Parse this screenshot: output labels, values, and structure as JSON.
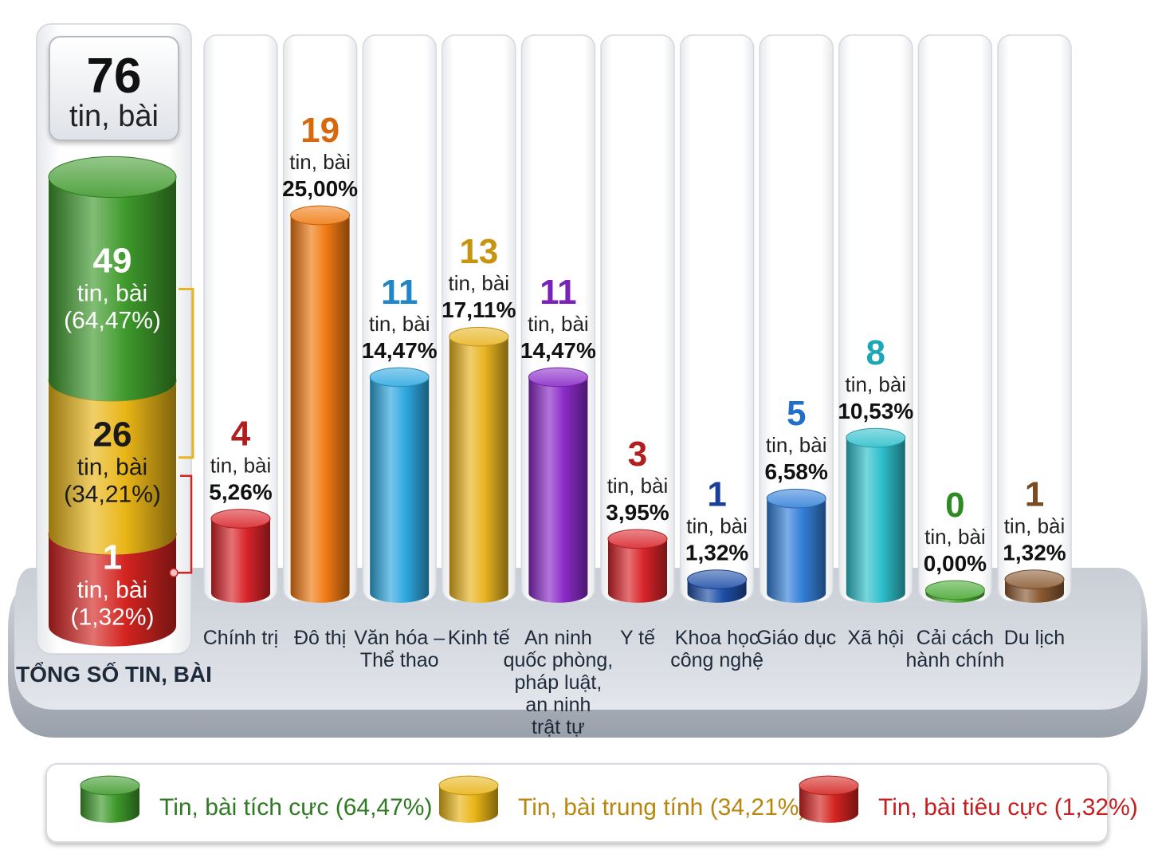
{
  "unit": "tin, bài",
  "colors": {
    "positive": "#3f9a2c",
    "neutral": "#e9b517",
    "negative": "#d42420"
  },
  "chart_data": {
    "type": "bar",
    "title": "",
    "xlabel": "",
    "ylabel": "",
    "ylim": [
      0,
      19
    ],
    "grid": false,
    "legend_position": "bottom",
    "total": {
      "value": 76,
      "caption": "TỔNG SỐ TIN, BÀI",
      "segments": [
        {
          "name": "Tin, bài tích cực",
          "value": 49,
          "percent": "(64,47%)",
          "legend_label": "Tin, bài tích cực (64,47%)",
          "color": "#3f9a2c"
        },
        {
          "name": "Tin, bài trung tính",
          "value": 26,
          "percent": "(34,21%)",
          "legend_label": "Tin, bài trung tính (34,21%)",
          "color": "#e9b517"
        },
        {
          "name": "Tin, bài tiêu cực",
          "value": 1,
          "percent": "(1,32%)",
          "legend_label": "Tin, bài tiêu cực (1,32%)",
          "color": "#d42420"
        }
      ]
    },
    "categories": [
      {
        "label": "Chính trị",
        "value": 4,
        "percent": "5,26%",
        "color": "#d8242a",
        "num_color": "#b01e1e"
      },
      {
        "label": "Đô thị",
        "value": 19,
        "percent": "25,00%",
        "color": "#f07a12",
        "num_color": "#d8680c"
      },
      {
        "label": "Văn hóa –\nThể thao",
        "value": 11,
        "percent": "14,47%",
        "color": "#2ea8e0",
        "num_color": "#1f86c8"
      },
      {
        "label": "Kinh tế",
        "value": 13,
        "percent": "17,11%",
        "color": "#e8b420",
        "num_color": "#c8940e"
      },
      {
        "label": "An ninh\nquốc phòng,\npháp luật,\nan ninh\ntrật tự",
        "value": 11,
        "percent": "14,47%",
        "color": "#8a2bc8",
        "num_color": "#7a22b8"
      },
      {
        "label": "Y tế",
        "value": 3,
        "percent": "3,95%",
        "color": "#d8242a",
        "num_color": "#b01e1e"
      },
      {
        "label": "Khoa học\ncông nghệ",
        "value": 1,
        "percent": "1,32%",
        "color": "#1f4fa8",
        "num_color": "#1a3f98"
      },
      {
        "label": "Giáo dục",
        "value": 5,
        "percent": "6,58%",
        "color": "#3480d8",
        "num_color": "#2070c8"
      },
      {
        "label": "Xã hội",
        "value": 8,
        "percent": "10,53%",
        "color": "#2ec0cc",
        "num_color": "#1aa8b8"
      },
      {
        "label": "Cải cách\nhành chính",
        "value": 0,
        "percent": "0,00%",
        "color": "#48a832",
        "num_color": "#2e8a22"
      },
      {
        "label": "Du lịch",
        "value": 1,
        "percent": "1,32%",
        "color": "#8a5a32",
        "num_color": "#7a4a22"
      }
    ]
  }
}
